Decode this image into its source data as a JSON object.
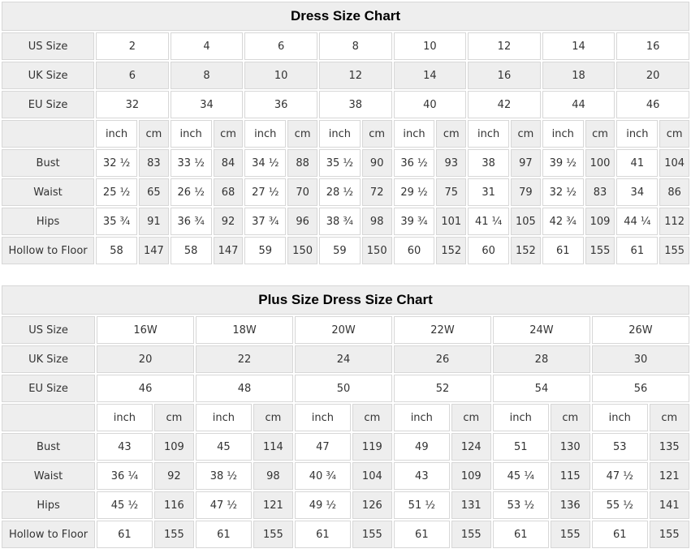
{
  "colors": {
    "shaded_bg": "#eeeeee",
    "cell_bg": "#ffffff",
    "border": "#d7d7d7",
    "text": "#333333",
    "title_text": "#000000"
  },
  "tables": [
    {
      "title": "Dress Size Chart",
      "size_rows": [
        {
          "label": "US Size",
          "shaded": false,
          "values": [
            "2",
            "4",
            "6",
            "8",
            "10",
            "12",
            "14",
            "16"
          ]
        },
        {
          "label": "UK Size",
          "shaded": true,
          "values": [
            "6",
            "8",
            "10",
            "12",
            "14",
            "16",
            "18",
            "20"
          ]
        },
        {
          "label": "EU Size",
          "shaded": false,
          "values": [
            "32",
            "34",
            "36",
            "38",
            "40",
            "42",
            "44",
            "46"
          ]
        }
      ],
      "units": [
        "inch",
        "cm"
      ],
      "measure_rows": [
        {
          "label": "Bust",
          "pairs": [
            [
              "32 ½",
              "83"
            ],
            [
              "33 ½",
              "84"
            ],
            [
              "34 ½",
              "88"
            ],
            [
              "35 ½",
              "90"
            ],
            [
              "36 ½",
              "93"
            ],
            [
              "38",
              "97"
            ],
            [
              "39 ½",
              "100"
            ],
            [
              "41",
              "104"
            ]
          ]
        },
        {
          "label": "Waist",
          "pairs": [
            [
              "25 ½",
              "65"
            ],
            [
              "26 ½",
              "68"
            ],
            [
              "27 ½",
              "70"
            ],
            [
              "28 ½",
              "72"
            ],
            [
              "29 ½",
              "75"
            ],
            [
              "31",
              "79"
            ],
            [
              "32 ½",
              "83"
            ],
            [
              "34",
              "86"
            ]
          ]
        },
        {
          "label": "Hips",
          "pairs": [
            [
              "35 ¾",
              "91"
            ],
            [
              "36 ¾",
              "92"
            ],
            [
              "37 ¾",
              "96"
            ],
            [
              "38 ¾",
              "98"
            ],
            [
              "39 ¾",
              "101"
            ],
            [
              "41 ¼",
              "105"
            ],
            [
              "42 ¾",
              "109"
            ],
            [
              "44 ¼",
              "112"
            ]
          ]
        },
        {
          "label": "Hollow to Floor",
          "pairs": [
            [
              "58",
              "147"
            ],
            [
              "58",
              "147"
            ],
            [
              "59",
              "150"
            ],
            [
              "59",
              "150"
            ],
            [
              "60",
              "152"
            ],
            [
              "60",
              "152"
            ],
            [
              "61",
              "155"
            ],
            [
              "61",
              "155"
            ]
          ]
        }
      ]
    },
    {
      "title": "Plus Size Dress Size Chart",
      "size_rows": [
        {
          "label": "US Size",
          "shaded": false,
          "values": [
            "16W",
            "18W",
            "20W",
            "22W",
            "24W",
            "26W"
          ]
        },
        {
          "label": "UK Size",
          "shaded": true,
          "values": [
            "20",
            "22",
            "24",
            "26",
            "28",
            "30"
          ]
        },
        {
          "label": "EU Size",
          "shaded": false,
          "values": [
            "46",
            "48",
            "50",
            "52",
            "54",
            "56"
          ]
        }
      ],
      "units": [
        "inch",
        "cm"
      ],
      "measure_rows": [
        {
          "label": "Bust",
          "pairs": [
            [
              "43",
              "109"
            ],
            [
              "45",
              "114"
            ],
            [
              "47",
              "119"
            ],
            [
              "49",
              "124"
            ],
            [
              "51",
              "130"
            ],
            [
              "53",
              "135"
            ]
          ]
        },
        {
          "label": "Waist",
          "pairs": [
            [
              "36 ¼",
              "92"
            ],
            [
              "38 ½",
              "98"
            ],
            [
              "40 ¾",
              "104"
            ],
            [
              "43",
              "109"
            ],
            [
              "45 ¼",
              "115"
            ],
            [
              "47 ½",
              "121"
            ]
          ]
        },
        {
          "label": "Hips",
          "pairs": [
            [
              "45 ½",
              "116"
            ],
            [
              "47 ½",
              "121"
            ],
            [
              "49 ½",
              "126"
            ],
            [
              "51 ½",
              "131"
            ],
            [
              "53 ½",
              "136"
            ],
            [
              "55 ½",
              "141"
            ]
          ]
        },
        {
          "label": "Hollow to Floor",
          "pairs": [
            [
              "61",
              "155"
            ],
            [
              "61",
              "155"
            ],
            [
              "61",
              "155"
            ],
            [
              "61",
              "155"
            ],
            [
              "61",
              "155"
            ],
            [
              "61",
              "155"
            ]
          ]
        }
      ]
    }
  ]
}
